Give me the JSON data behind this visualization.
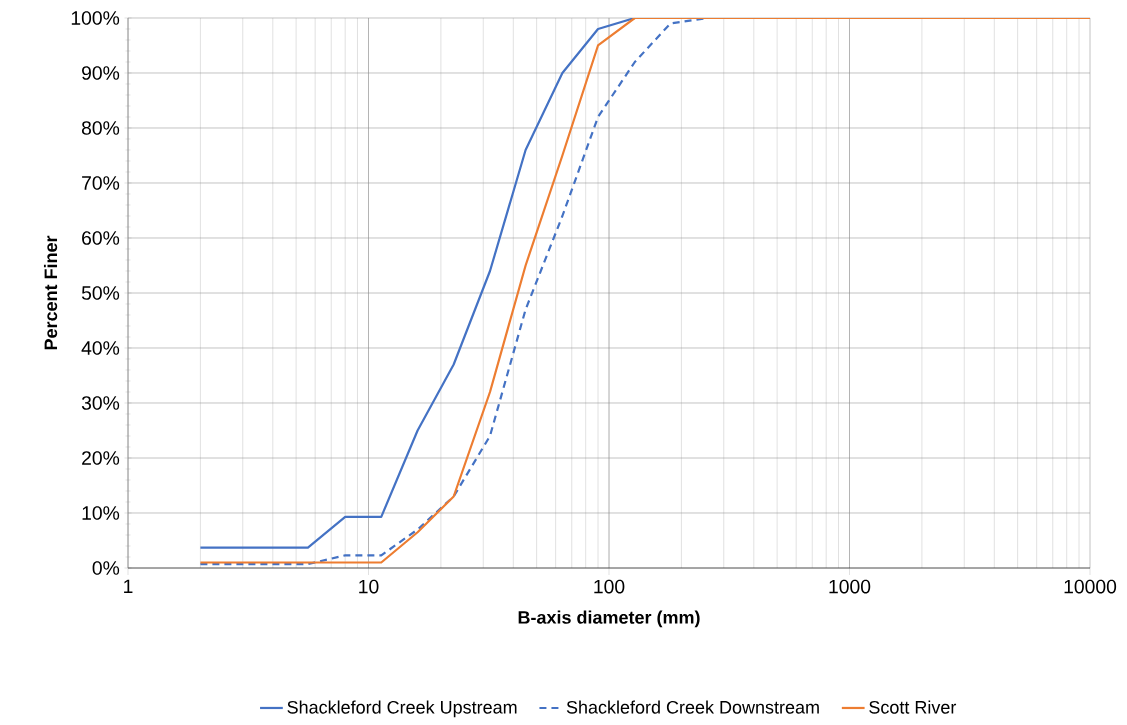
{
  "chart_data": {
    "type": "line",
    "xlabel": "B-axis diameter (mm)",
    "ylabel": "Percent Finer",
    "x": [
      2,
      5.6,
      8,
      11.3,
      16,
      22.6,
      32,
      45,
      64,
      90,
      128,
      180,
      256,
      10000
    ],
    "series": [
      {
        "name": "Shackleford Creek Upstream",
        "color": "#4472c4",
        "line_style": "solid",
        "values": [
          3.7,
          3.7,
          9.3,
          9.3,
          25,
          37,
          54,
          76,
          90,
          98,
          100,
          100,
          null,
          null
        ]
      },
      {
        "name": "Shackleford Creek Downstream",
        "color": "#4472c4",
        "line_style": "dashed",
        "values": [
          0.7,
          0.7,
          2.3,
          2.3,
          7,
          13,
          24,
          47,
          64,
          82,
          92,
          99,
          100,
          null
        ]
      },
      {
        "name": "Scott River",
        "color": "#ed7d31",
        "line_style": "solid",
        "values": [
          1,
          1,
          1,
          1,
          6.5,
          13,
          32,
          55,
          75,
          95,
          100,
          100,
          100,
          100
        ]
      }
    ],
    "log": "x",
    "xlim": [
      1,
      10000
    ],
    "xticks": [
      1,
      10,
      100,
      1000,
      10000
    ],
    "ylim": [
      0,
      100
    ],
    "yticks": [
      {
        "value": 0,
        "label": "0%"
      },
      {
        "value": 10,
        "label": "10%"
      },
      {
        "value": 20,
        "label": "20%"
      },
      {
        "value": 30,
        "label": "30%"
      },
      {
        "value": 40,
        "label": "40%"
      },
      {
        "value": 50,
        "label": "50%"
      },
      {
        "value": 60,
        "label": "60%"
      },
      {
        "value": 70,
        "label": "70%"
      },
      {
        "value": 80,
        "label": "80%"
      },
      {
        "value": 90,
        "label": "90%"
      },
      {
        "value": 100,
        "label": "100%"
      }
    ],
    "grid": true,
    "legend": "bottom",
    "marker": "none"
  }
}
